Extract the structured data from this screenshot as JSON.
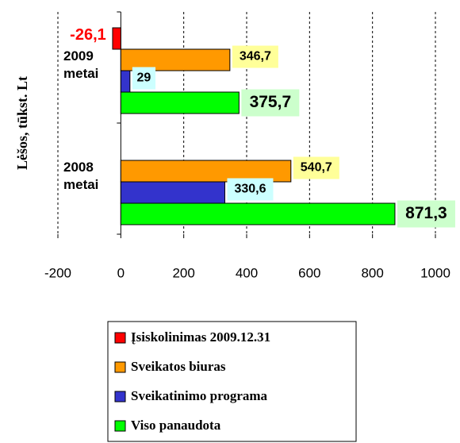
{
  "chart_data": {
    "type": "hbar",
    "y_label": "Lėšos, tūkst. Lt",
    "categories": [
      "2009 metai",
      "2008 metai"
    ],
    "series": [
      {
        "name": "Įsiskolinimas 2009.12.31",
        "color": "#ff0000",
        "label_color": "#ffffff",
        "values": [
          -26.1,
          null
        ],
        "value_labels": [
          "-26,1",
          null
        ]
      },
      {
        "name": "Sveikatos biuras",
        "color": "#ff9900",
        "label_color": "#ffff99",
        "values": [
          346.7,
          540.7
        ],
        "value_labels": [
          "346,7",
          "540,7"
        ]
      },
      {
        "name": "Sveikatinimo programa",
        "color": "#3333cc",
        "label_color": "#ccffff",
        "values": [
          29,
          330.6
        ],
        "value_labels": [
          "29",
          "330,6"
        ]
      },
      {
        "name": "Viso panaudota",
        "color": "#00ff00",
        "label_color": "#ccffcc",
        "values": [
          375.7,
          871.3
        ],
        "value_labels": [
          "375,7",
          "871,3"
        ]
      }
    ],
    "xlim": [
      -200,
      1000
    ],
    "xticks": [
      -200,
      0,
      200,
      400,
      600,
      800,
      1000
    ],
    "grid": true
  }
}
